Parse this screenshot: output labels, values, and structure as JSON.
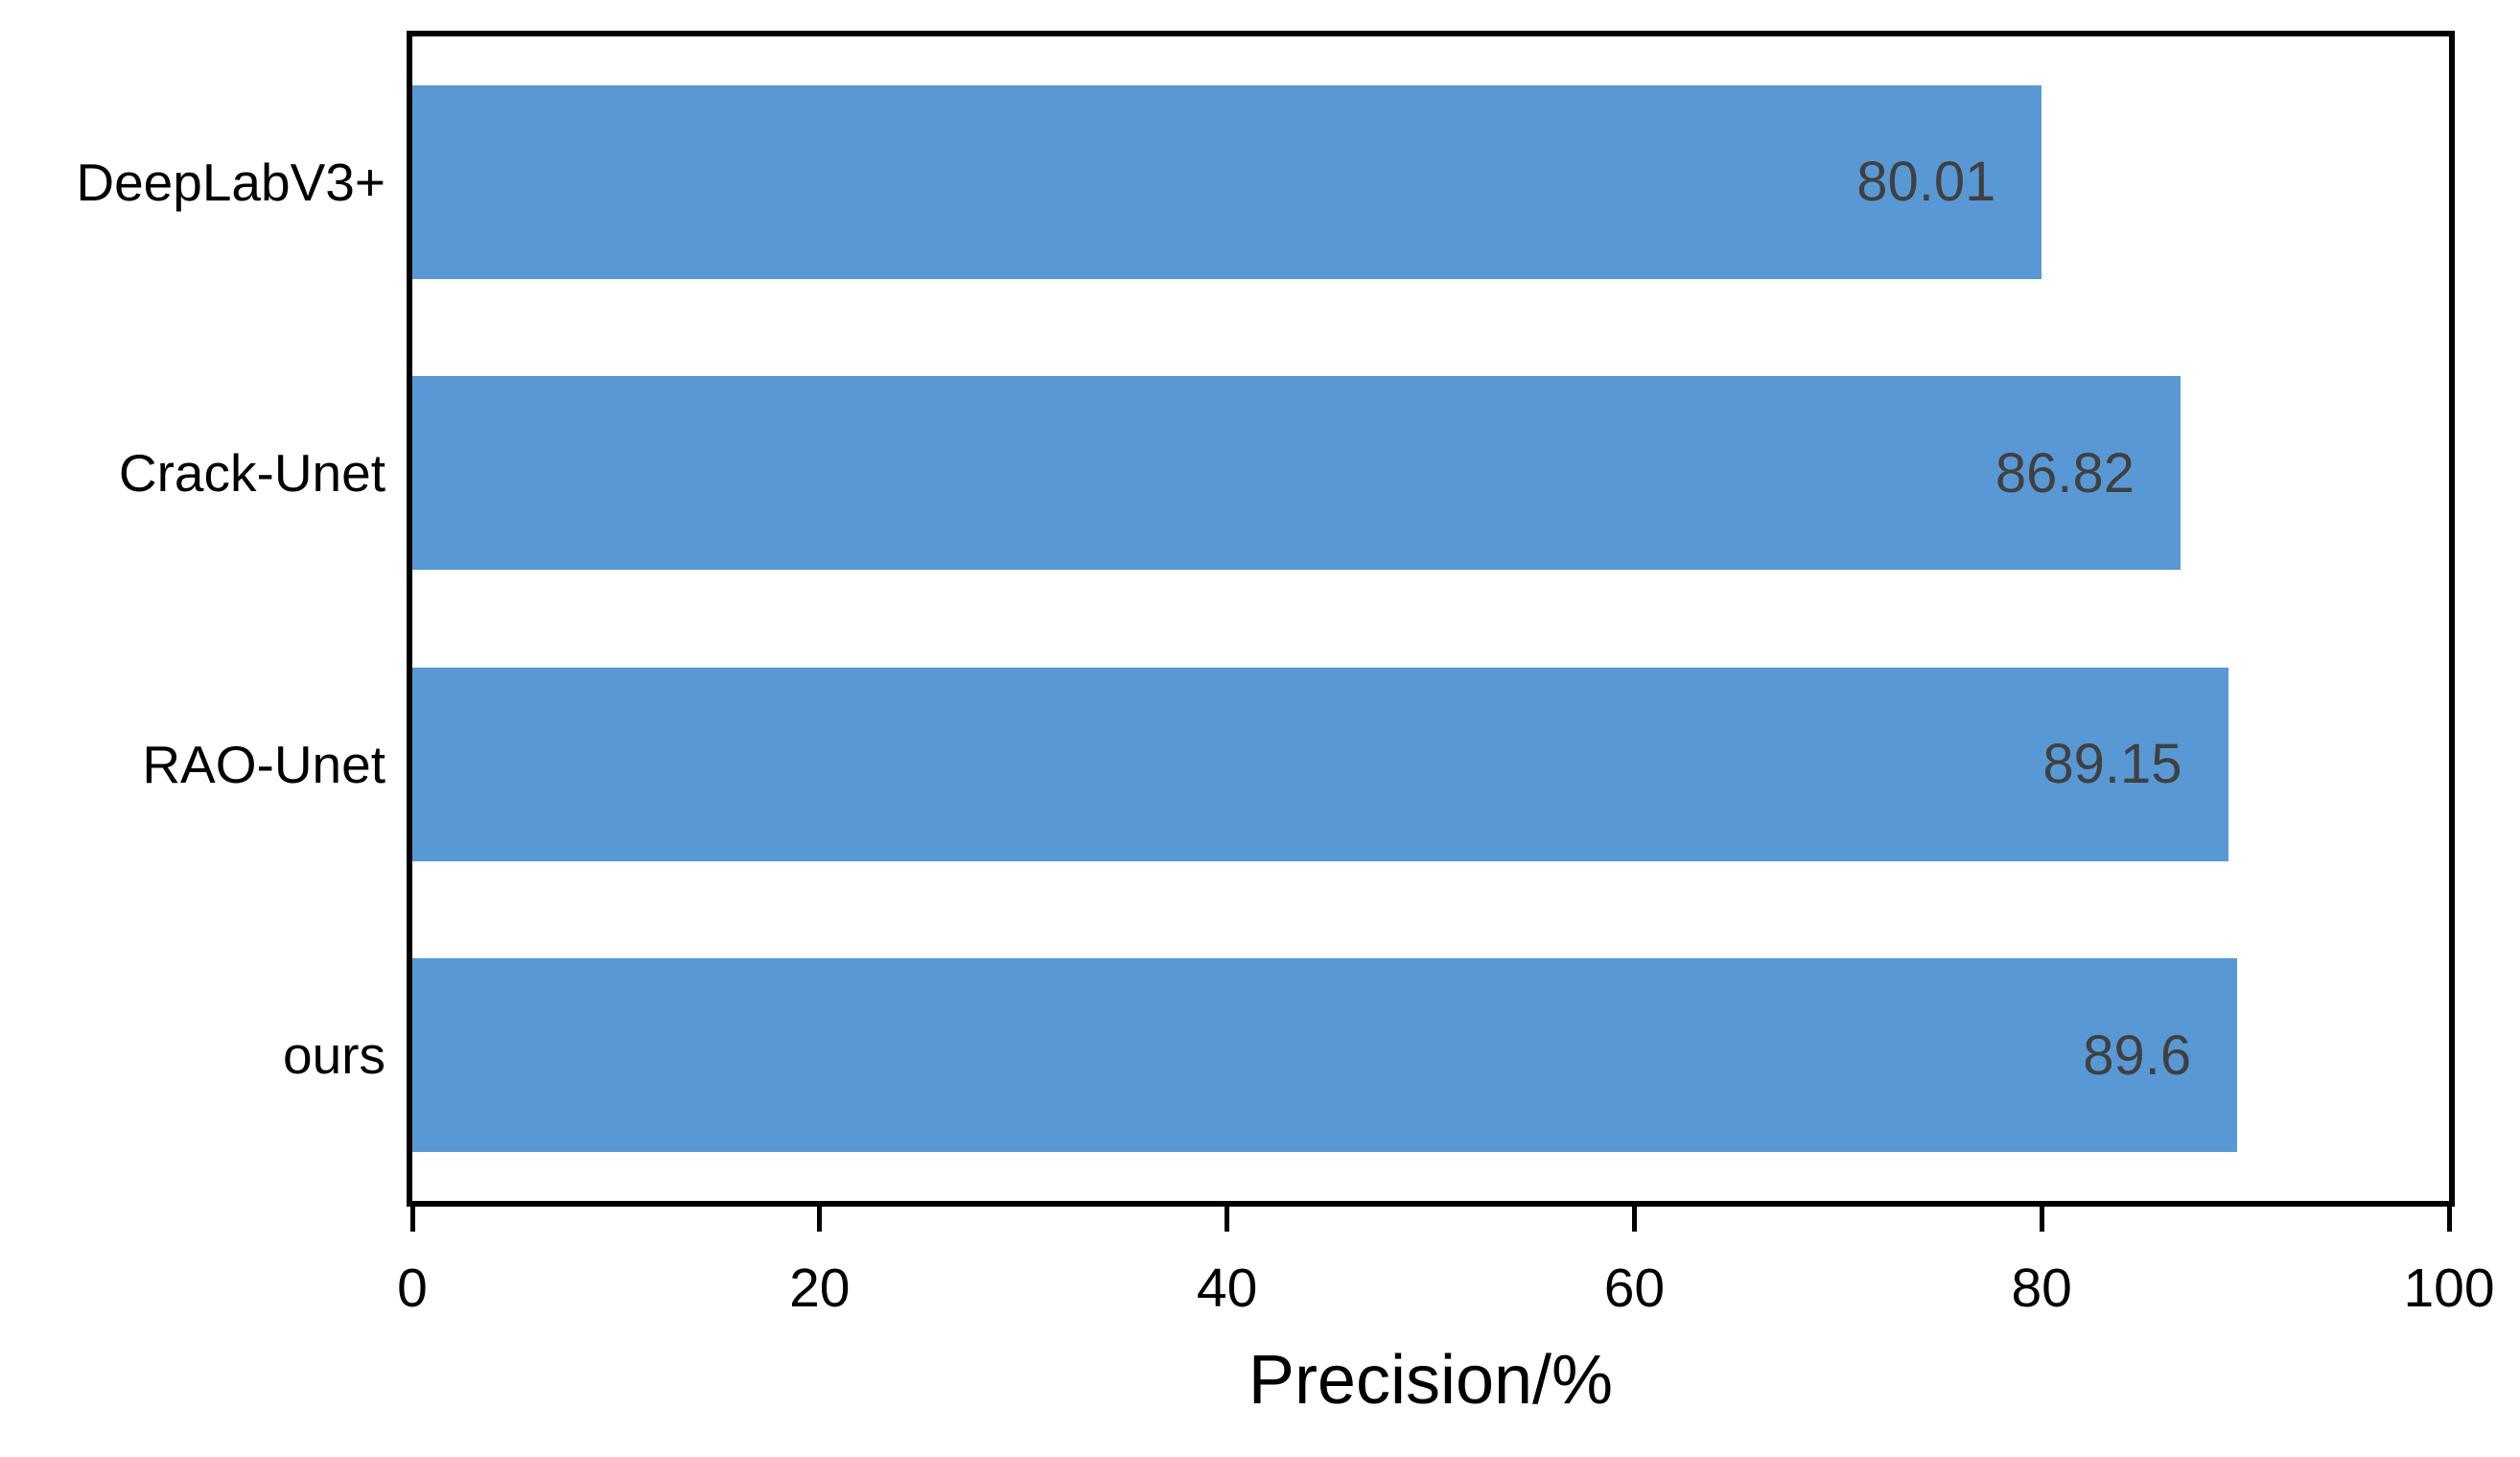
{
  "chart_data": {
    "type": "bar",
    "orientation": "horizontal",
    "title": "",
    "xlabel": "Precision/%",
    "ylabel": "",
    "categories": [
      "DeepLabV3+",
      "Crack-Unet",
      "RAO-Unet",
      "ours"
    ],
    "values": [
      80.01,
      86.82,
      89.15,
      89.6
    ],
    "value_labels": [
      "80.01",
      "86.82",
      "89.15",
      "89.6"
    ],
    "xlim": [
      0,
      100
    ],
    "xticks": [
      "0",
      "20",
      "40",
      "60",
      "80",
      "100"
    ],
    "grid": false,
    "legend_position": "none",
    "colors": {
      "bar_fill": "#5899D5",
      "value_label": "#404040",
      "axis_line": "#000000",
      "tick_label": "#000000",
      "category_label": "#000000",
      "background": "#ffffff"
    }
  }
}
